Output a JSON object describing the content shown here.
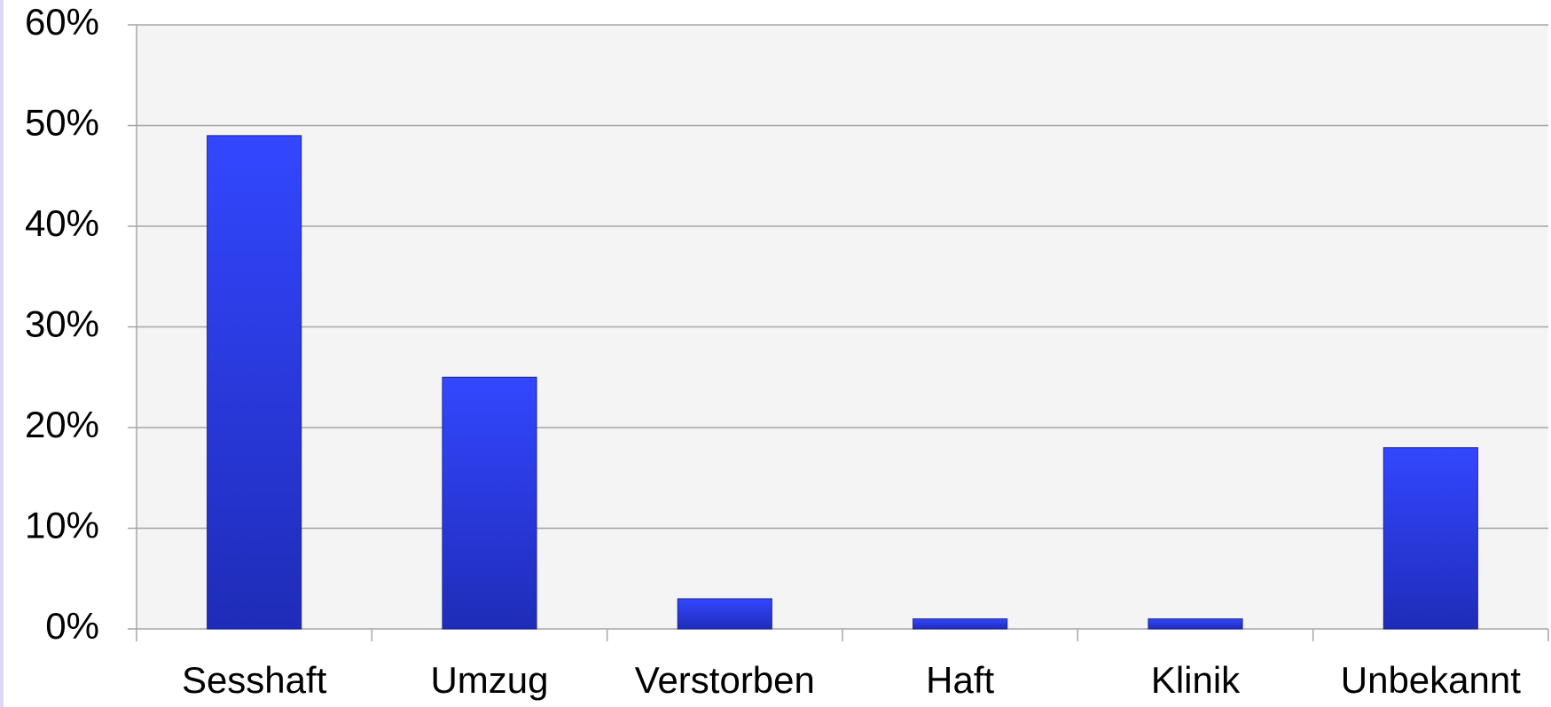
{
  "chart_data": {
    "type": "bar",
    "categories": [
      "Sesshaft",
      "Umzug",
      "Verstorben",
      "Haft",
      "Klinik",
      "Unbekannt"
    ],
    "values": [
      49,
      25,
      3,
      1,
      1,
      18
    ],
    "color": "#2b3ff0",
    "ylim": [
      0,
      60
    ],
    "yticks": [
      {
        "value": 0,
        "label": "0%"
      },
      {
        "value": 10,
        "label": "10%"
      },
      {
        "value": 20,
        "label": "20%"
      },
      {
        "value": 30,
        "label": "30%"
      },
      {
        "value": 40,
        "label": "40%"
      },
      {
        "value": 50,
        "label": "50%"
      },
      {
        "value": 60,
        "label": "60%"
      }
    ],
    "grid": true
  }
}
